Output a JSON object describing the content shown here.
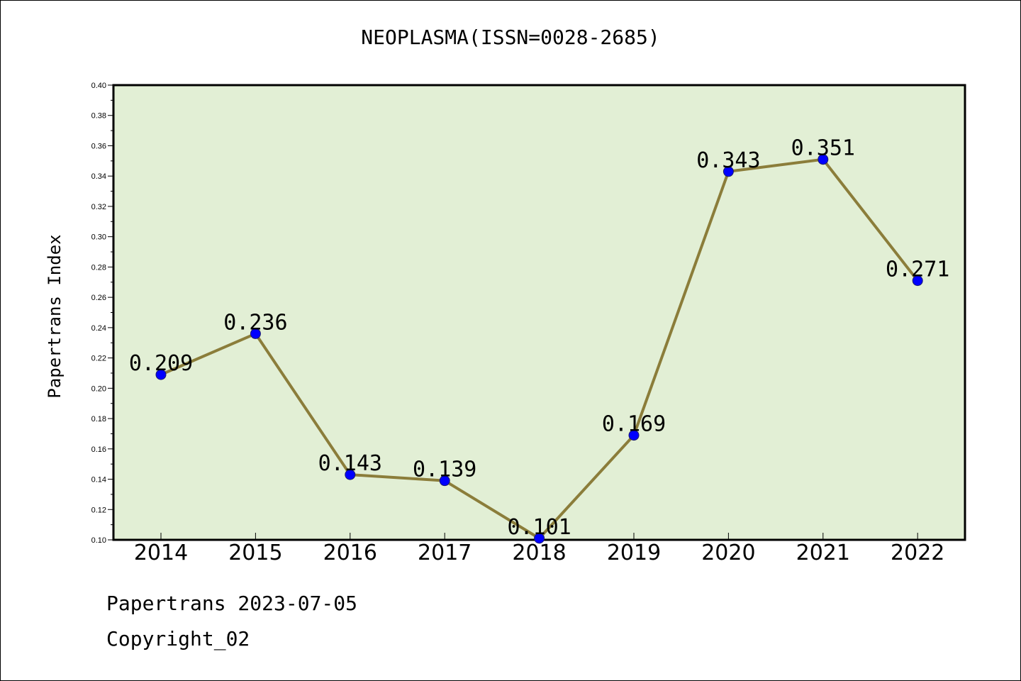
{
  "title": "NEOPLASMA(ISSN=0028-2685)",
  "footer": {
    "line1": "Papertrans 2023-07-05",
    "line2": "Copyright_02"
  },
  "colors": {
    "plot_background": "#e2efd5",
    "line": "#8b7d3a",
    "marker": "#0000ff",
    "marker_edge": "#1a1a6e"
  },
  "chart_data": {
    "type": "line",
    "title": "NEOPLASMA(ISSN=0028-2685)",
    "xlabel": "",
    "ylabel": "Papertrans Index",
    "categories": [
      "2014",
      "2015",
      "2016",
      "2017",
      "2018",
      "2019",
      "2020",
      "2021",
      "2022"
    ],
    "values": [
      0.209,
      0.236,
      0.143,
      0.139,
      0.101,
      0.169,
      0.343,
      0.351,
      0.271
    ],
    "data_labels": [
      "0.209",
      "0.236",
      "0.143",
      "0.139",
      "0.101",
      "0.169",
      "0.343",
      "0.351",
      "0.271"
    ],
    "ylim": [
      0.1,
      0.4
    ],
    "yticks": [
      "0.10",
      "0.12",
      "0.14",
      "0.16",
      "0.18",
      "0.20",
      "0.22",
      "0.24",
      "0.26",
      "0.28",
      "0.30",
      "0.32",
      "0.34",
      "0.36",
      "0.38",
      "0.40"
    ],
    "grid": false,
    "legend": "none"
  }
}
